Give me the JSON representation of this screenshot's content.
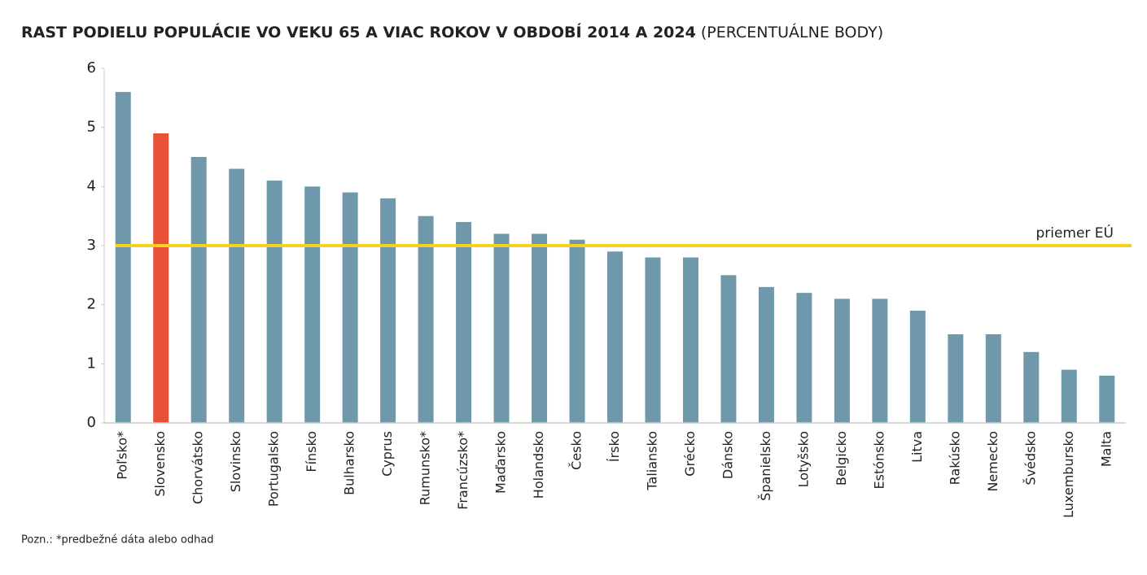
{
  "chart_data": {
    "type": "bar",
    "title": "RAST PODIELU POPULÁCIE VO VEKU 65 A VIAC ROKOV V OBDOBÍ 2014 A 2024",
    "title_unit": "(PERCENTUÁLNE BODY)",
    "categories": [
      "Poľsko*",
      "Slovensko",
      "Chorvátsko",
      "Slovinsko",
      "Portugalsko",
      "Fínsko",
      "Bulharsko",
      "Cyprus",
      "Rumunsko*",
      "Francúzsko*",
      "Maďarsko",
      "Holandsko",
      "Česko",
      "Írsko",
      "Taliansko",
      "Grécko",
      "Dánsko",
      "Španielsko",
      "Lotyšsko",
      "Belgicko",
      "Estónsko",
      "Litva",
      "Rakúsko",
      "Nemecko",
      "Švédsko",
      "Luxembursko",
      "Malta"
    ],
    "values": [
      5.6,
      4.9,
      4.5,
      4.3,
      4.1,
      4.0,
      3.9,
      3.8,
      3.5,
      3.4,
      3.2,
      3.2,
      3.1,
      2.9,
      2.8,
      2.8,
      2.5,
      2.3,
      2.2,
      2.1,
      2.1,
      1.9,
      1.5,
      1.5,
      1.2,
      0.9,
      0.8
    ],
    "colors": [
      "#6f99aa",
      "#e8503a",
      "#6f99aa",
      "#6f99aa",
      "#6f99aa",
      "#6f99aa",
      "#6f99aa",
      "#6f99aa",
      "#6f99aa",
      "#6f99aa",
      "#6f99aa",
      "#6f99aa",
      "#6f99aa",
      "#6f99aa",
      "#6f99aa",
      "#6f99aa",
      "#6f99aa",
      "#6f99aa",
      "#6f99aa",
      "#6f99aa",
      "#6f99aa",
      "#6f99aa",
      "#6f99aa",
      "#6f99aa",
      "#6f99aa",
      "#6f99aa",
      "#6f99aa"
    ],
    "ylim": [
      0,
      6
    ],
    "yticks": [
      0,
      1,
      2,
      3,
      4,
      5,
      6
    ],
    "reference_line": {
      "label": "priemer EÚ",
      "value": 3,
      "color": "#f5d21f"
    },
    "note": "Pozn.: *predbežné dáta alebo odhad"
  }
}
